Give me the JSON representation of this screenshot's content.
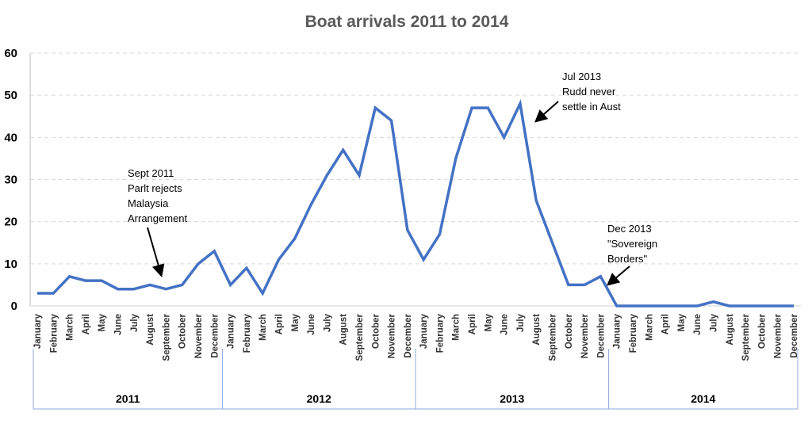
{
  "chart_data": {
    "type": "line",
    "title": "Boat arrivals 2011 to 2014",
    "xlabel": "",
    "ylabel": "",
    "ylim": [
      0,
      60
    ],
    "yticks": [
      0,
      10,
      20,
      30,
      40,
      50,
      60
    ],
    "grid": true,
    "line_color": "#4472C4",
    "years": [
      "2011",
      "2012",
      "2013",
      "2014"
    ],
    "months": [
      "January",
      "February",
      "March",
      "April",
      "May",
      "June",
      "July",
      "August",
      "September",
      "October",
      "November",
      "December"
    ],
    "series": [
      {
        "values": [
          3,
          3,
          7,
          6,
          6,
          4,
          4,
          5,
          4,
          5,
          10,
          13,
          5,
          9,
          3,
          11,
          16,
          24,
          31,
          37,
          31,
          47,
          44,
          18,
          11,
          17,
          35,
          47,
          47,
          40,
          48,
          25,
          15,
          5,
          5,
          7,
          0,
          0,
          0,
          0,
          0,
          0,
          1,
          0,
          0,
          0,
          0,
          0
        ]
      }
    ],
    "annotations": [
      {
        "lines": [
          "Sept 2011",
          "Parlt rejects",
          "Malaysia",
          "Arrangement"
        ],
        "month_index": 8
      },
      {
        "lines": [
          "Jul 2013",
          "Rudd never",
          "settle in Aust"
        ],
        "month_index": 30
      },
      {
        "lines": [
          "Dec 2013",
          "\"Sovereign",
          "Borders\""
        ],
        "month_index": 35
      }
    ]
  }
}
